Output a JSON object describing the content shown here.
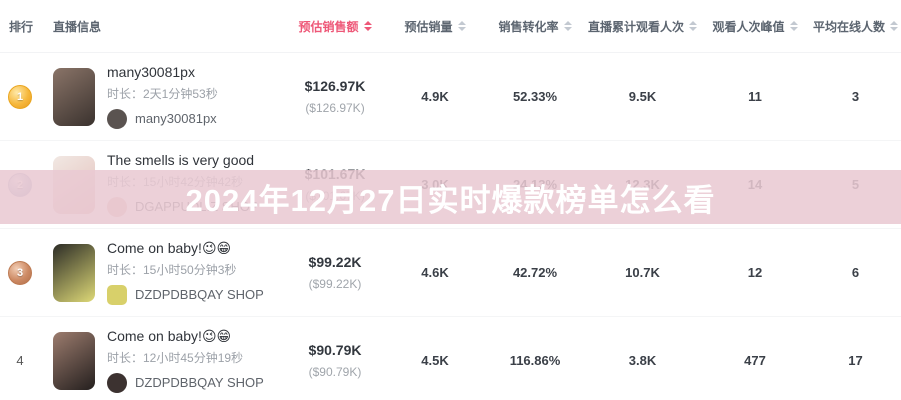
{
  "overlay": {
    "title": "2024年12月27日实时爆款榜单怎么看"
  },
  "colors": {
    "accent_sort_active": "#ee5878",
    "overlay_band": "#e9c9d2",
    "overlay_text": "#ffffff",
    "medal_gold": "#f6b83d",
    "medal_silver": "#b9c3da",
    "medal_bronze": "#cd8a64"
  },
  "table": {
    "columns": [
      {
        "label": "排行",
        "sortable": false,
        "active": false
      },
      {
        "label": "直播信息",
        "sortable": false,
        "active": false
      },
      {
        "label": "预估销售额",
        "sortable": true,
        "active": true
      },
      {
        "label": "预估销量",
        "sortable": true,
        "active": false
      },
      {
        "label": "销售转化率",
        "sortable": true,
        "active": false
      },
      {
        "label": "直播累计观看人次",
        "sortable": true,
        "active": false
      },
      {
        "label": "观看人次峰值",
        "sortable": true,
        "active": false
      },
      {
        "label": "平均在线人数",
        "sortable": true,
        "active": false
      }
    ],
    "rows": [
      {
        "rank": "1",
        "medal": "gold",
        "title": "many30081px",
        "duration": "时长：2天1分钟53秒",
        "shop": "many30081px",
        "sales": "$126.97K",
        "sales_secondary": "($126.97K)",
        "volume": "4.9K",
        "conversion": "52.33%",
        "views": "9.5K",
        "peak": "11",
        "avg": "3",
        "thumb_colors": [
          "#8a7468",
          "#3a322e"
        ],
        "shop_avatar_color": "#5a5350",
        "shop_avatar_shape": "circle"
      },
      {
        "rank": "2",
        "medal": "silver",
        "title": "The smells is very good",
        "duration": "时长：15小时42分钟42秒",
        "shop": "DGAPPUDLIZ SHOP",
        "sales": "$101.67K",
        "sales_secondary": "($101.67K)",
        "volume": "3.0K",
        "conversion": "24.13%",
        "views": "12.3K",
        "peak": "14",
        "avg": "5",
        "thumb_colors": [
          "#f1e8e3",
          "#e3bdb8"
        ],
        "shop_avatar_color": "#e3bdb8",
        "shop_avatar_shape": "circle"
      },
      {
        "rank": "3",
        "medal": "bronze",
        "title": "Come on baby!😉😁",
        "duration": "时长：15小时50分钟3秒",
        "shop": "DZDPDBBQAY SHOP",
        "sales": "$99.22K",
        "sales_secondary": "($99.22K)",
        "volume": "4.6K",
        "conversion": "42.72%",
        "views": "10.7K",
        "peak": "12",
        "avg": "6",
        "thumb_colors": [
          "#2c2c26",
          "#ded977"
        ],
        "shop_avatar_color": "#d8d06a",
        "shop_avatar_shape": "rounded"
      },
      {
        "rank": "4",
        "medal": null,
        "title": "Come on baby!😉😁",
        "duration": "时长：12小时45分钟19秒",
        "shop": "DZDPDBBQAY SHOP",
        "sales": "$90.79K",
        "sales_secondary": "($90.79K)",
        "volume": "4.5K",
        "conversion": "116.86%",
        "views": "3.8K",
        "peak": "477",
        "avg": "17",
        "thumb_colors": [
          "#9c7c6e",
          "#241f1e"
        ],
        "shop_avatar_color": "#3c3230",
        "shop_avatar_shape": "circle"
      }
    ]
  }
}
